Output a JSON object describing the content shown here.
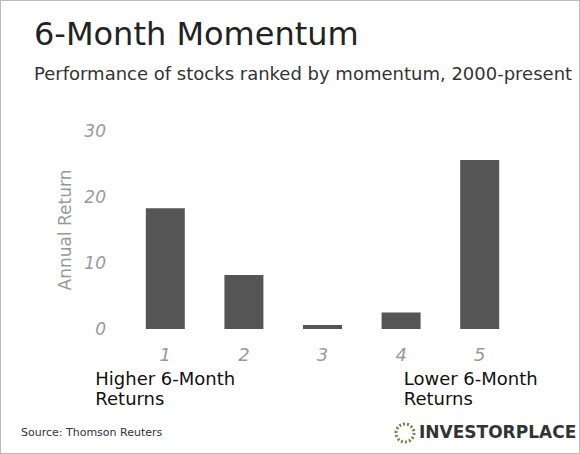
{
  "chart_data": {
    "type": "bar",
    "title": "6-Month Momentum",
    "subtitle": "Performance of stocks ranked by momentum, 2000-present",
    "ylabel": "Annual Return",
    "categories": [
      "1",
      "2",
      "3",
      "4",
      "5"
    ],
    "values": [
      18.3,
      8.2,
      0.6,
      2.5,
      25.6
    ],
    "color": "#555555",
    "ylim": [
      0,
      30
    ],
    "yticks": [
      0,
      10,
      20,
      30
    ],
    "grid": false,
    "annotations": [
      {
        "category": "1",
        "text": "Higher 6-Month Returns"
      },
      {
        "category": "5",
        "text": "Lower 6-Month Returns"
      }
    ],
    "source": "Source: Thomson Reuters",
    "credit": "INVESTORPLACE"
  }
}
